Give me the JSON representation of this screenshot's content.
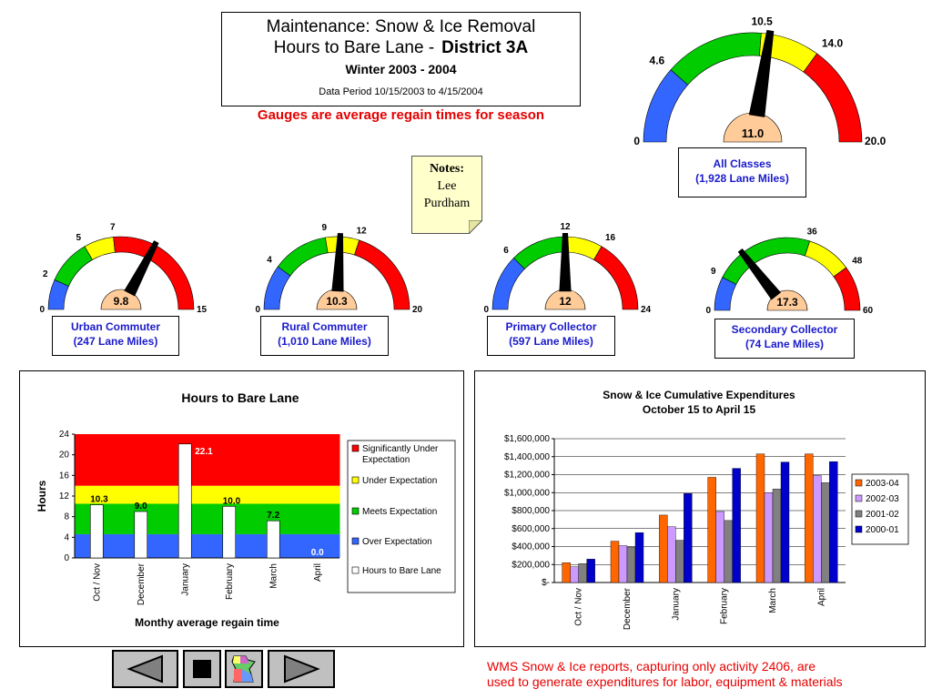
{
  "header": {
    "title_line1": "Maintenance: Snow & Ice Removal",
    "title_line2": "Hours to Bare Lane -",
    "district": "District 3A",
    "season": "Winter  2003 - 2004",
    "data_period": "Data Period 10/15/2003 to 4/15/2004",
    "gauge_note": "Gauges are average regain times for season"
  },
  "notes": {
    "heading": "Notes:",
    "line1": "Lee",
    "line2": "Purdham"
  },
  "gauges": {
    "all": {
      "value": 11.0,
      "value_text": "11.0",
      "max": 20,
      "thresholds": [
        4.6,
        10.5,
        14.0
      ],
      "tick_labels": [
        "0",
        "4.6",
        "10.5",
        "14.0",
        "20.0"
      ],
      "label_line1": "All Classes",
      "label_line2": "(1,928 Lane Miles)"
    },
    "urban": {
      "value": 9.8,
      "value_text": "9.8",
      "max": 15,
      "thresholds": [
        2,
        5,
        7
      ],
      "tick_labels": [
        "0",
        "2",
        "5",
        "7",
        "15"
      ],
      "label_line1": "Urban Commuter",
      "label_line2": "(247 Lane Miles)"
    },
    "rural": {
      "value": 10.3,
      "value_text": "10.3",
      "max": 20,
      "thresholds": [
        4,
        9,
        12
      ],
      "tick_labels": [
        "0",
        "4",
        "9",
        "12",
        "20"
      ],
      "label_line1": "Rural Commuter",
      "label_line2": "(1,010 Lane Miles)"
    },
    "primary": {
      "value": 12,
      "value_text": "12",
      "max": 24,
      "thresholds": [
        6,
        12,
        16
      ],
      "tick_labels": [
        "0",
        "6",
        "12",
        "16",
        "24"
      ],
      "label_line1": "Primary Collector",
      "label_line2": "(597 Lane Miles)"
    },
    "secondary": {
      "value": 17.3,
      "value_text": "17.3",
      "max": 60,
      "thresholds": [
        9,
        36,
        48
      ],
      "tick_labels": [
        "0",
        "9",
        "36",
        "48",
        "60"
      ],
      "label_line1": "Secondary Collector",
      "label_line2": "(74 Lane Miles)"
    }
  },
  "colors": {
    "over": "#3366ff",
    "meets": "#00cc00",
    "under": "#ffff00",
    "sig_under": "#ff0000",
    "needle": "#000000",
    "hub": "#ffcc99"
  },
  "chart_data": [
    {
      "type": "bar",
      "title": "Hours to Bare Lane",
      "xlabel": "Monthy average regain time",
      "ylabel": "Hours",
      "ylim": [
        0,
        24
      ],
      "yticks": [
        "0",
        "4",
        "8",
        "12",
        "16",
        "20",
        "24"
      ],
      "categories": [
        "Oct / Nov",
        "December",
        "January",
        "February",
        "March",
        "April"
      ],
      "bands": [
        {
          "name": "Significantly Under Expectation",
          "color": "#ff0000"
        },
        {
          "name": "Under Expectation",
          "color": "#ffff00"
        },
        {
          "name": "Meets Expectation",
          "color": "#00cc00"
        },
        {
          "name": "Over Expectation",
          "color": "#3366ff"
        }
      ],
      "band_bounds": [
        [
          4.6,
          10.5,
          14.0
        ],
        [
          4.6,
          10.5,
          14.0
        ],
        [
          4.6,
          10.5,
          14.0
        ],
        [
          4.6,
          10.5,
          14.0
        ],
        [
          4.6,
          10.5,
          14.0
        ],
        [
          4.6,
          10.5,
          14.0
        ]
      ],
      "series": [
        {
          "name": "Hours to Bare Lane",
          "values": [
            10.3,
            9.0,
            22.1,
            10.0,
            7.2,
            0.0
          ],
          "labels": [
            "10.3",
            "9.0",
            "22.1",
            "10.0",
            "7.2",
            "0.0"
          ]
        }
      ],
      "legend": "right"
    },
    {
      "type": "bar",
      "title": "Snow & Ice Cumulative Expenditures",
      "subtitle": "October 15 to April 15",
      "ylim": [
        0,
        1600000
      ],
      "yticks": [
        "$-",
        "$200,000",
        "$400,000",
        "$600,000",
        "$800,000",
        "$1,000,000",
        "$1,200,000",
        "$1,400,000",
        "$1,600,000"
      ],
      "categories": [
        "Oct / Nov",
        "December",
        "January",
        "February",
        "March",
        "April"
      ],
      "series": [
        {
          "name": "2003-04",
          "color": "#ff6600",
          "values": [
            220000,
            460000,
            750000,
            1170000,
            1430000,
            1430000
          ]
        },
        {
          "name": "2002-03",
          "color": "#cc99ff",
          "values": [
            175000,
            410000,
            620000,
            790000,
            1000000,
            1190000
          ]
        },
        {
          "name": "2001-02",
          "color": "#808080",
          "values": [
            210000,
            395000,
            470000,
            690000,
            1040000,
            1110000
          ]
        },
        {
          "name": "2000-01",
          "color": "#0000cc",
          "values": [
            260000,
            555000,
            990000,
            1270000,
            1340000,
            1345000
          ]
        }
      ],
      "legend": "right"
    }
  ],
  "nav": {
    "prev": "previous-slide",
    "stop": "stop",
    "map": "minnesota-map",
    "next": "next-slide"
  },
  "footer": {
    "line1": "WMS Snow & Ice reports, capturing only activity 2406, are",
    "line2": "used to generate expenditures for labor, equipment & materials"
  }
}
